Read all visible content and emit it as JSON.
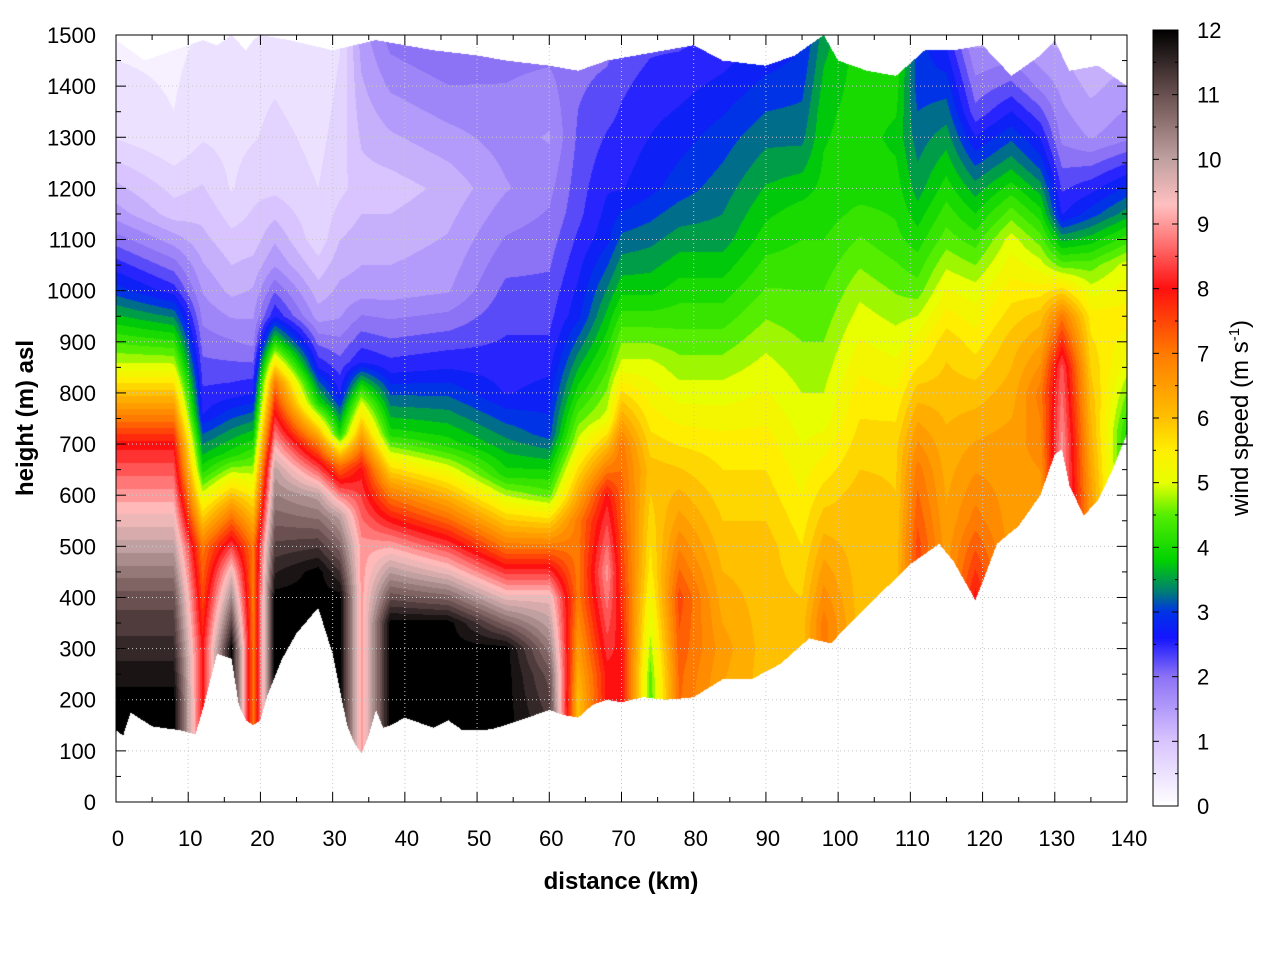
{
  "chart_data": {
    "type": "heatmap",
    "title": "",
    "xlabel": "distance (km)",
    "ylabel": "height (m) asl",
    "xlim": [
      0,
      140
    ],
    "ylim": [
      0,
      1500
    ],
    "x_ticks": [
      "0",
      "10",
      "20",
      "30",
      "40",
      "50",
      "60",
      "70",
      "80",
      "90",
      "100",
      "110",
      "120",
      "130",
      "140"
    ],
    "y_ticks": [
      "0",
      "100",
      "200",
      "300",
      "400",
      "500",
      "600",
      "700",
      "800",
      "900",
      "1000",
      "1100",
      "1200",
      "1300",
      "1400",
      "1500"
    ],
    "grid": true,
    "colorbar": {
      "label_prefix": "wind speed (m s",
      "label_sup": "-1",
      "label_suffix": ")",
      "range": [
        0,
        12
      ],
      "ticks": [
        "0",
        "1",
        "2",
        "3",
        "4",
        "5",
        "6",
        "7",
        "8",
        "9",
        "10",
        "11",
        "12"
      ],
      "palette": [
        [
          0,
          "#ffffff"
        ],
        [
          1,
          "#d9c4ff"
        ],
        [
          2,
          "#8c72f5"
        ],
        [
          2.6,
          "#1414ff"
        ],
        [
          3,
          "#0033e6"
        ],
        [
          3.3,
          "#007a78"
        ],
        [
          3.8,
          "#00d200"
        ],
        [
          4.5,
          "#55ee00"
        ],
        [
          5,
          "#e8ff00"
        ],
        [
          5.5,
          "#ffee00"
        ],
        [
          6,
          "#ffc000"
        ],
        [
          7,
          "#ff7a00"
        ],
        [
          8,
          "#ff1010"
        ],
        [
          8.8,
          "#ff7e7e"
        ],
        [
          9.3,
          "#ffc0c0"
        ],
        [
          10,
          "#c0a0a0"
        ],
        [
          11,
          "#6a5050"
        ],
        [
          12,
          "#000000"
        ]
      ]
    },
    "terrain_height_m": {
      "x_km": [
        0,
        1,
        2,
        5,
        9,
        11,
        12,
        14,
        16,
        17,
        18,
        19,
        20,
        21,
        23,
        25,
        28,
        30,
        32,
        33,
        34,
        35,
        36,
        37,
        38,
        40,
        44,
        46,
        48,
        52,
        56,
        60,
        62,
        64,
        66,
        68,
        70,
        73,
        76,
        78,
        80,
        84,
        88,
        92,
        96,
        99,
        102,
        106,
        110,
        114,
        116,
        118,
        119,
        120,
        122,
        125,
        128,
        130,
        131,
        132,
        134,
        136,
        138,
        140
      ],
      "height": [
        140,
        130,
        175,
        148,
        140,
        132,
        180,
        290,
        280,
        190,
        160,
        150,
        160,
        210,
        280,
        330,
        380,
        290,
        150,
        115,
        95,
        130,
        180,
        145,
        150,
        165,
        145,
        160,
        140,
        142,
        160,
        180,
        170,
        165,
        190,
        200,
        195,
        205,
        200,
        202,
        205,
        240,
        240,
        270,
        320,
        310,
        355,
        410,
        465,
        505,
        470,
        420,
        395,
        430,
        505,
        540,
        600,
        680,
        690,
        620,
        560,
        590,
        650,
        720
      ]
    },
    "data_top_m": {
      "x_km": [
        0,
        4,
        8,
        12,
        14,
        16,
        18,
        19,
        20,
        24,
        30,
        36,
        40,
        44,
        50,
        54,
        60,
        64,
        68,
        72,
        76,
        80,
        84,
        90,
        94,
        96,
        98,
        100,
        104,
        108,
        112,
        116,
        120,
        124,
        128,
        130,
        132,
        136,
        140
      ],
      "height": [
        1490,
        1450,
        1470,
        1490,
        1480,
        1500,
        1470,
        1490,
        1500,
        1490,
        1470,
        1490,
        1480,
        1470,
        1460,
        1450,
        1440,
        1430,
        1450,
        1460,
        1470,
        1480,
        1450,
        1440,
        1460,
        1480,
        1500,
        1450,
        1430,
        1420,
        1470,
        1470,
        1480,
        1420,
        1460,
        1490,
        1430,
        1440,
        1400
      ]
    },
    "wind_speed_profiles": {
      "description_keys": [
        "x_km",
        "heights_m",
        "speeds_m_s"
      ],
      "profiles": [
        {
          "x": 0,
          "h": [
            0,
            200,
            400,
            550,
            700,
            850,
            1000,
            1150,
            1300,
            1500
          ],
          "s": [
            12,
            12,
            11,
            9.5,
            8,
            5,
            3,
            1.5,
            0.6,
            0.3
          ]
        },
        {
          "x": 8,
          "h": [
            0,
            200,
            400,
            550,
            700,
            850,
            1000,
            1150,
            1300,
            1500
          ],
          "s": [
            12,
            12,
            11,
            9.5,
            8,
            5,
            2.5,
            1,
            0.4,
            0.3
          ]
        },
        {
          "x": 12,
          "h": [
            0,
            300,
            500,
            650,
            760,
            900,
            1100,
            1300,
            1500
          ],
          "s": [
            8,
            8,
            7,
            4,
            2.6,
            2.0,
            1.2,
            0.6,
            0.4
          ]
        },
        {
          "x": 16,
          "h": [
            0,
            300,
            450,
            560,
            680,
            800,
            1000,
            1200,
            1500
          ],
          "s": [
            12,
            12,
            9.5,
            7,
            4,
            2.5,
            1.3,
            0.6,
            0.4
          ]
        },
        {
          "x": 19,
          "h": [
            0,
            200,
            500,
            700,
            800,
            900,
            1100,
            1300,
            1500
          ],
          "s": [
            7,
            7,
            7,
            4,
            2.6,
            1.8,
            1.0,
            0.6,
            0.5
          ]
        },
        {
          "x": 22,
          "h": [
            0,
            400,
            650,
            820,
            900,
            950,
            1050,
            1200,
            1500
          ],
          "s": [
            12,
            12,
            10,
            7,
            4,
            2.6,
            1.6,
            0.8,
            0.5
          ]
        },
        {
          "x": 28,
          "h": [
            0,
            450,
            600,
            700,
            780,
            850,
            950,
            1100,
            1500
          ],
          "s": [
            12,
            12,
            10,
            7,
            4,
            2.6,
            1.5,
            0.7,
            0.4
          ]
        },
        {
          "x": 31,
          "h": [
            0,
            400,
            560,
            660,
            720,
            800,
            950,
            1200,
            1500
          ],
          "s": [
            12,
            12,
            10,
            7,
            4,
            2.6,
            1.6,
            0.8,
            0.6
          ]
        },
        {
          "x": 34,
          "h": [
            0,
            250,
            500,
            650,
            780,
            860,
            1000,
            1200,
            1500
          ],
          "s": [
            9,
            9,
            9,
            8,
            5,
            2.6,
            1.5,
            1.0,
            1.5
          ]
        },
        {
          "x": 38,
          "h": [
            0,
            350,
            480,
            600,
            720,
            850,
            1000,
            1200,
            1500
          ],
          "s": [
            12,
            12,
            9.5,
            7,
            4,
            2.5,
            1.5,
            1.0,
            2.0
          ]
        },
        {
          "x": 46,
          "h": [
            0,
            350,
            450,
            560,
            700,
            850,
            1000,
            1200,
            1500
          ],
          "s": [
            12,
            12,
            9.5,
            7,
            4,
            2.6,
            1.6,
            1.2,
            2.2
          ]
        },
        {
          "x": 54,
          "h": [
            0,
            300,
            400,
            500,
            640,
            800,
            1000,
            1200,
            1500
          ],
          "s": [
            12,
            12,
            9.5,
            7,
            4,
            2.6,
            2.2,
            1.6,
            2.0
          ]
        },
        {
          "x": 60,
          "h": [
            0,
            250,
            400,
            500,
            600,
            720,
            900,
            1100,
            1300,
            1500
          ],
          "s": [
            12,
            11,
            9.5,
            7,
            4.5,
            3.0,
            2.4,
            2.0,
            1.6,
            2.0
          ]
        },
        {
          "x": 64,
          "h": [
            0,
            200,
            400,
            550,
            700,
            800,
            950,
            1150,
            1500
          ],
          "s": [
            6,
            6,
            7,
            7,
            5,
            4,
            2.8,
            2.3,
            2.0
          ]
        },
        {
          "x": 68,
          "h": [
            0,
            250,
            450,
            600,
            750,
            900,
            1100,
            1300,
            1500
          ],
          "s": [
            8,
            8,
            9,
            8,
            5,
            4,
            2.8,
            2.4,
            2.0
          ]
        },
        {
          "x": 70,
          "h": [
            0,
            300,
            500,
            700,
            850,
            1000,
            1200,
            1500
          ],
          "s": [
            8,
            8,
            7.5,
            7,
            5,
            3.8,
            2.6,
            2.2
          ]
        },
        {
          "x": 74,
          "h": [
            0,
            250,
            450,
            650,
            850,
            1000,
            1200,
            1500
          ],
          "s": [
            4,
            4.5,
            5.5,
            6,
            5,
            3.8,
            2.8,
            2.3
          ]
        },
        {
          "x": 78,
          "h": [
            0,
            250,
            400,
            550,
            800,
            1000,
            1200,
            1500
          ],
          "s": [
            7,
            7.2,
            7.5,
            6.5,
            5,
            4,
            3,
            2.3
          ]
        },
        {
          "x": 84,
          "h": [
            0,
            300,
            500,
            700,
            900,
            1100,
            1300,
            1500
          ],
          "s": [
            6,
            6.5,
            6,
            5.5,
            4.5,
            3.5,
            3,
            2.4
          ]
        },
        {
          "x": 90,
          "h": [
            0,
            300,
            500,
            700,
            900,
            1100,
            1300,
            1500
          ],
          "s": [
            6,
            6,
            6,
            5.5,
            4.8,
            4,
            3.3,
            2.6
          ]
        },
        {
          "x": 95,
          "h": [
            0,
            350,
            550,
            750,
            950,
            1150,
            1300,
            1500
          ],
          "s": [
            6,
            6,
            5.5,
            5,
            4.5,
            4,
            3.3,
            2.8
          ]
        },
        {
          "x": 98,
          "h": [
            0,
            350,
            550,
            750,
            950,
            1150,
            1350,
            1500
          ],
          "s": [
            7,
            7,
            6,
            5,
            4.5,
            4,
            3.8,
            3.5
          ]
        },
        {
          "x": 103,
          "h": [
            0,
            400,
            600,
            800,
            1000,
            1200,
            1400,
            1500
          ],
          "s": [
            6,
            6,
            6,
            5.5,
            4.8,
            4,
            4,
            4
          ]
        },
        {
          "x": 108,
          "h": [
            0,
            450,
            700,
            900,
            1100,
            1300,
            1500
          ],
          "s": [
            6,
            6,
            5.8,
            5,
            4.2,
            3.8,
            4.2
          ]
        },
        {
          "x": 111,
          "h": [
            0,
            500,
            650,
            800,
            1000,
            1200,
            1400,
            1500
          ],
          "s": [
            7.5,
            7.5,
            7,
            6,
            4.5,
            3.5,
            3,
            3
          ]
        },
        {
          "x": 115,
          "h": [
            0,
            500,
            700,
            900,
            1100,
            1300,
            1500
          ],
          "s": [
            6.5,
            6.5,
            6.2,
            5.8,
            4.5,
            3.5,
            2.5
          ]
        },
        {
          "x": 119,
          "h": [
            0,
            400,
            550,
            800,
            1000,
            1200,
            1350,
            1500
          ],
          "s": [
            8,
            8,
            7,
            6,
            5,
            3.5,
            2.2,
            1.5
          ]
        },
        {
          "x": 124,
          "h": [
            0,
            550,
            700,
            900,
            1100,
            1250,
            1400,
            1500
          ],
          "s": [
            6.5,
            6.5,
            6.5,
            6,
            5,
            3.5,
            2.2,
            1.5
          ]
        },
        {
          "x": 128,
          "h": [
            0,
            600,
            800,
            950,
            1100,
            1250,
            1400,
            1500
          ],
          "s": [
            6.5,
            6.5,
            7,
            6,
            4.5,
            3,
            1.8,
            1.3
          ]
        },
        {
          "x": 131,
          "h": [
            0,
            700,
            850,
            950,
            1050,
            1150,
            1300,
            1500
          ],
          "s": [
            9,
            9,
            8.5,
            7,
            4.5,
            2.6,
            1.8,
            1.3
          ]
        },
        {
          "x": 135,
          "h": [
            0,
            600,
            800,
            950,
            1050,
            1150,
            1300,
            1500
          ],
          "s": [
            6.5,
            6.5,
            6,
            5.5,
            4.5,
            3,
            1.6,
            1.0
          ]
        },
        {
          "x": 140,
          "h": [
            0,
            720,
            850,
            950,
            1050,
            1150,
            1300,
            1500
          ],
          "s": [
            4,
            4,
            5,
            5.5,
            5,
            3.5,
            1.8,
            1.2
          ]
        }
      ]
    }
  }
}
